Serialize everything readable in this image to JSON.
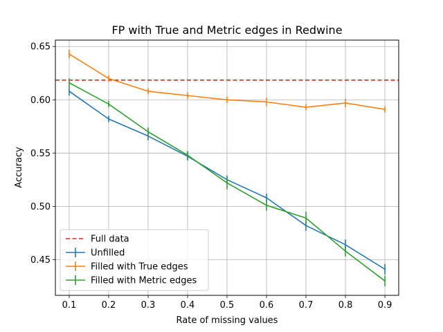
{
  "chart_data": {
    "type": "line",
    "title": "FP with True and Metric edges in Redwine",
    "xlabel": "Rate of missing values",
    "ylabel": "Accuracy",
    "x": [
      0.1,
      0.2,
      0.3,
      0.4,
      0.5,
      0.6,
      0.7,
      0.8,
      0.9
    ],
    "xlim": [
      0.065,
      0.935
    ],
    "ylim": [
      0.4165,
      0.656
    ],
    "x_ticks": [
      "0.1",
      "0.2",
      "0.3",
      "0.4",
      "0.5",
      "0.6",
      "0.7",
      "0.8",
      "0.9"
    ],
    "y_ticks": [
      "0.45",
      "0.50",
      "0.55",
      "0.60",
      "0.65"
    ],
    "grid": true,
    "legend_placement": "lower-left",
    "reference_lines": [
      {
        "name": "Full data",
        "y": 0.6185,
        "color": "#d62728",
        "style": "dashed"
      }
    ],
    "series": [
      {
        "name": "Unfilled",
        "color": "#1f77b4",
        "values": [
          0.608,
          0.582,
          0.566,
          0.547,
          0.525,
          0.508,
          0.482,
          0.464,
          0.441
        ],
        "errors": [
          0.004,
          0.003,
          0.004,
          0.004,
          0.004,
          0.004,
          0.005,
          0.005,
          0.005
        ]
      },
      {
        "name": "Filled with True edges",
        "color": "#ff7f0e",
        "values": [
          0.643,
          0.62,
          0.608,
          0.604,
          0.6,
          0.598,
          0.593,
          0.597,
          0.591
        ],
        "errors": [
          0.004,
          0.003,
          0.003,
          0.003,
          0.003,
          0.004,
          0.003,
          0.004,
          0.003
        ]
      },
      {
        "name": "Filled with Metric edges",
        "color": "#2ca02c",
        "values": [
          0.616,
          0.596,
          0.57,
          0.548,
          0.522,
          0.501,
          0.489,
          0.458,
          0.43
        ],
        "errors": [
          0.004,
          0.003,
          0.004,
          0.004,
          0.006,
          0.005,
          0.006,
          0.005,
          0.005
        ]
      }
    ]
  }
}
